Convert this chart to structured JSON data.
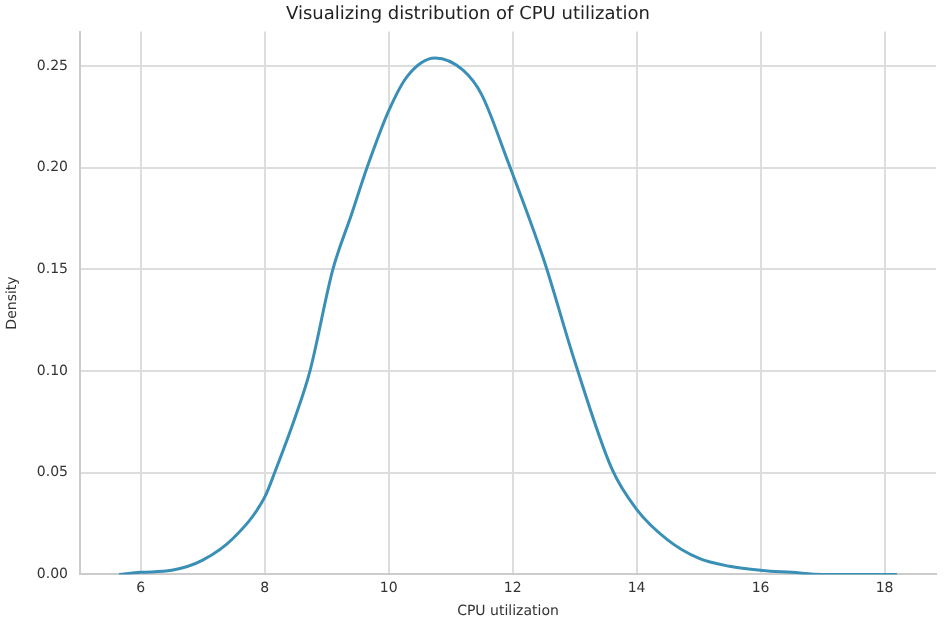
{
  "chart_data": {
    "type": "line",
    "title": "Visualizing distribution of CPU utilization",
    "xlabel": "CPU utilization",
    "ylabel": "Density",
    "series": [
      {
        "color": "#3a8fb7",
        "x": [
          5.65,
          6,
          6.5,
          7,
          7.5,
          8,
          8.16,
          8.5,
          8.73,
          9.1,
          9.4,
          9.65,
          10,
          10.3,
          10.75,
          11.2,
          11.5,
          11.9,
          12.5,
          13,
          13.6,
          14,
          14.5,
          15,
          15.5,
          16,
          16.5,
          17,
          17.5,
          18.2
        ],
        "values": [
          0,
          0.001,
          0.002,
          0.007,
          0.018,
          0.038,
          0.05,
          0.078,
          0.1,
          0.15,
          0.177,
          0.2,
          0.228,
          0.245,
          0.254,
          0.248,
          0.236,
          0.205,
          0.155,
          0.105,
          0.052,
          0.032,
          0.017,
          0.008,
          0.004,
          0.002,
          0.001,
          0,
          0,
          0
        ]
      }
    ],
    "xlim": [
      5.02,
      18.83
    ],
    "xticks": [
      6,
      8,
      10,
      12,
      14,
      16,
      18
    ],
    "ylim": [
      0,
      0.267
    ],
    "yticks": [
      {
        "value": 0,
        "label": "0.00"
      },
      {
        "value": 0.05,
        "label": "0.05"
      },
      {
        "value": 0.1,
        "label": "0.10"
      },
      {
        "value": 0.15,
        "label": "0.15"
      },
      {
        "value": 0.2,
        "label": "0.20"
      },
      {
        "value": 0.25,
        "label": "0.25"
      }
    ],
    "grid": true,
    "legend": false,
    "marker": "none",
    "line_style": "solid"
  }
}
